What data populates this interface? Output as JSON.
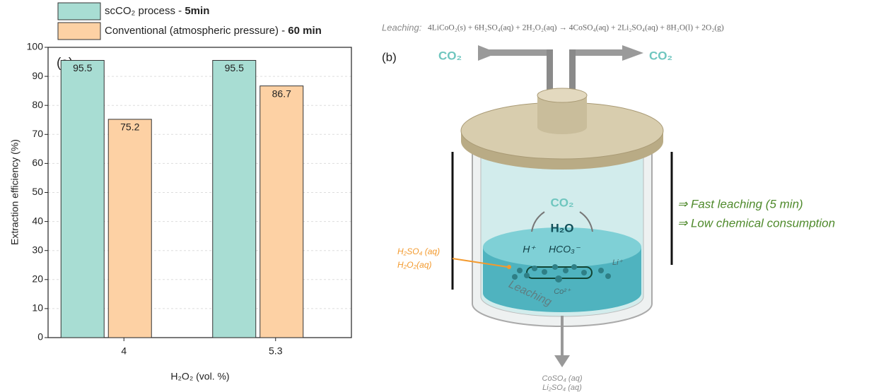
{
  "chart_data": {
    "type": "bar",
    "panel_label": "(a)",
    "x_label": "H₂O₂  (vol. %)",
    "y_label": "Extraction efficiency (%)",
    "categories": [
      "4",
      "5.3"
    ],
    "series": [
      {
        "name": "scCO₂ process - 5min",
        "color": "#a8ddd3",
        "values": [
          95.5,
          95.5
        ]
      },
      {
        "name": "Conventional (atmospheric pressure) - 60 min",
        "color": "#fdd1a4",
        "values": [
          75.2,
          86.7
        ]
      }
    ],
    "ylim": [
      0,
      100
    ],
    "yticks": [
      0,
      10,
      20,
      30,
      40,
      50,
      60,
      70,
      80,
      90,
      100
    ],
    "grid": true
  },
  "diagram": {
    "panel_label": "(b)",
    "equation_label": "Leaching:",
    "equation": "4LiCoO₂(s) + 6H₂SO₄(aq) + 2H₂O₂(aq) → 4CoSO₄(aq) + 2Li₂SO₄(aq) + 8H₂O(l) + 2O₂(g)",
    "co2_in": "CO₂",
    "co2_out": "CO₂",
    "co2_dissolved": "CO₂",
    "water": "H₂O",
    "proton": "H⁺",
    "bicarbonate": "HCO₃⁻",
    "lithium_ion": "Li⁺",
    "cobalt_ion": "Co²⁺",
    "leaching_label": "Leaching",
    "reagents": [
      "H₂SO₄ (aq)",
      "H₂O₂(aq)"
    ],
    "products": [
      "CoSO₄ (aq)",
      "Li₂SO₄ (aq)"
    ],
    "benefits": [
      "⇒ Fast leaching (5 min)",
      "⇒ Low chemical consumption"
    ]
  }
}
